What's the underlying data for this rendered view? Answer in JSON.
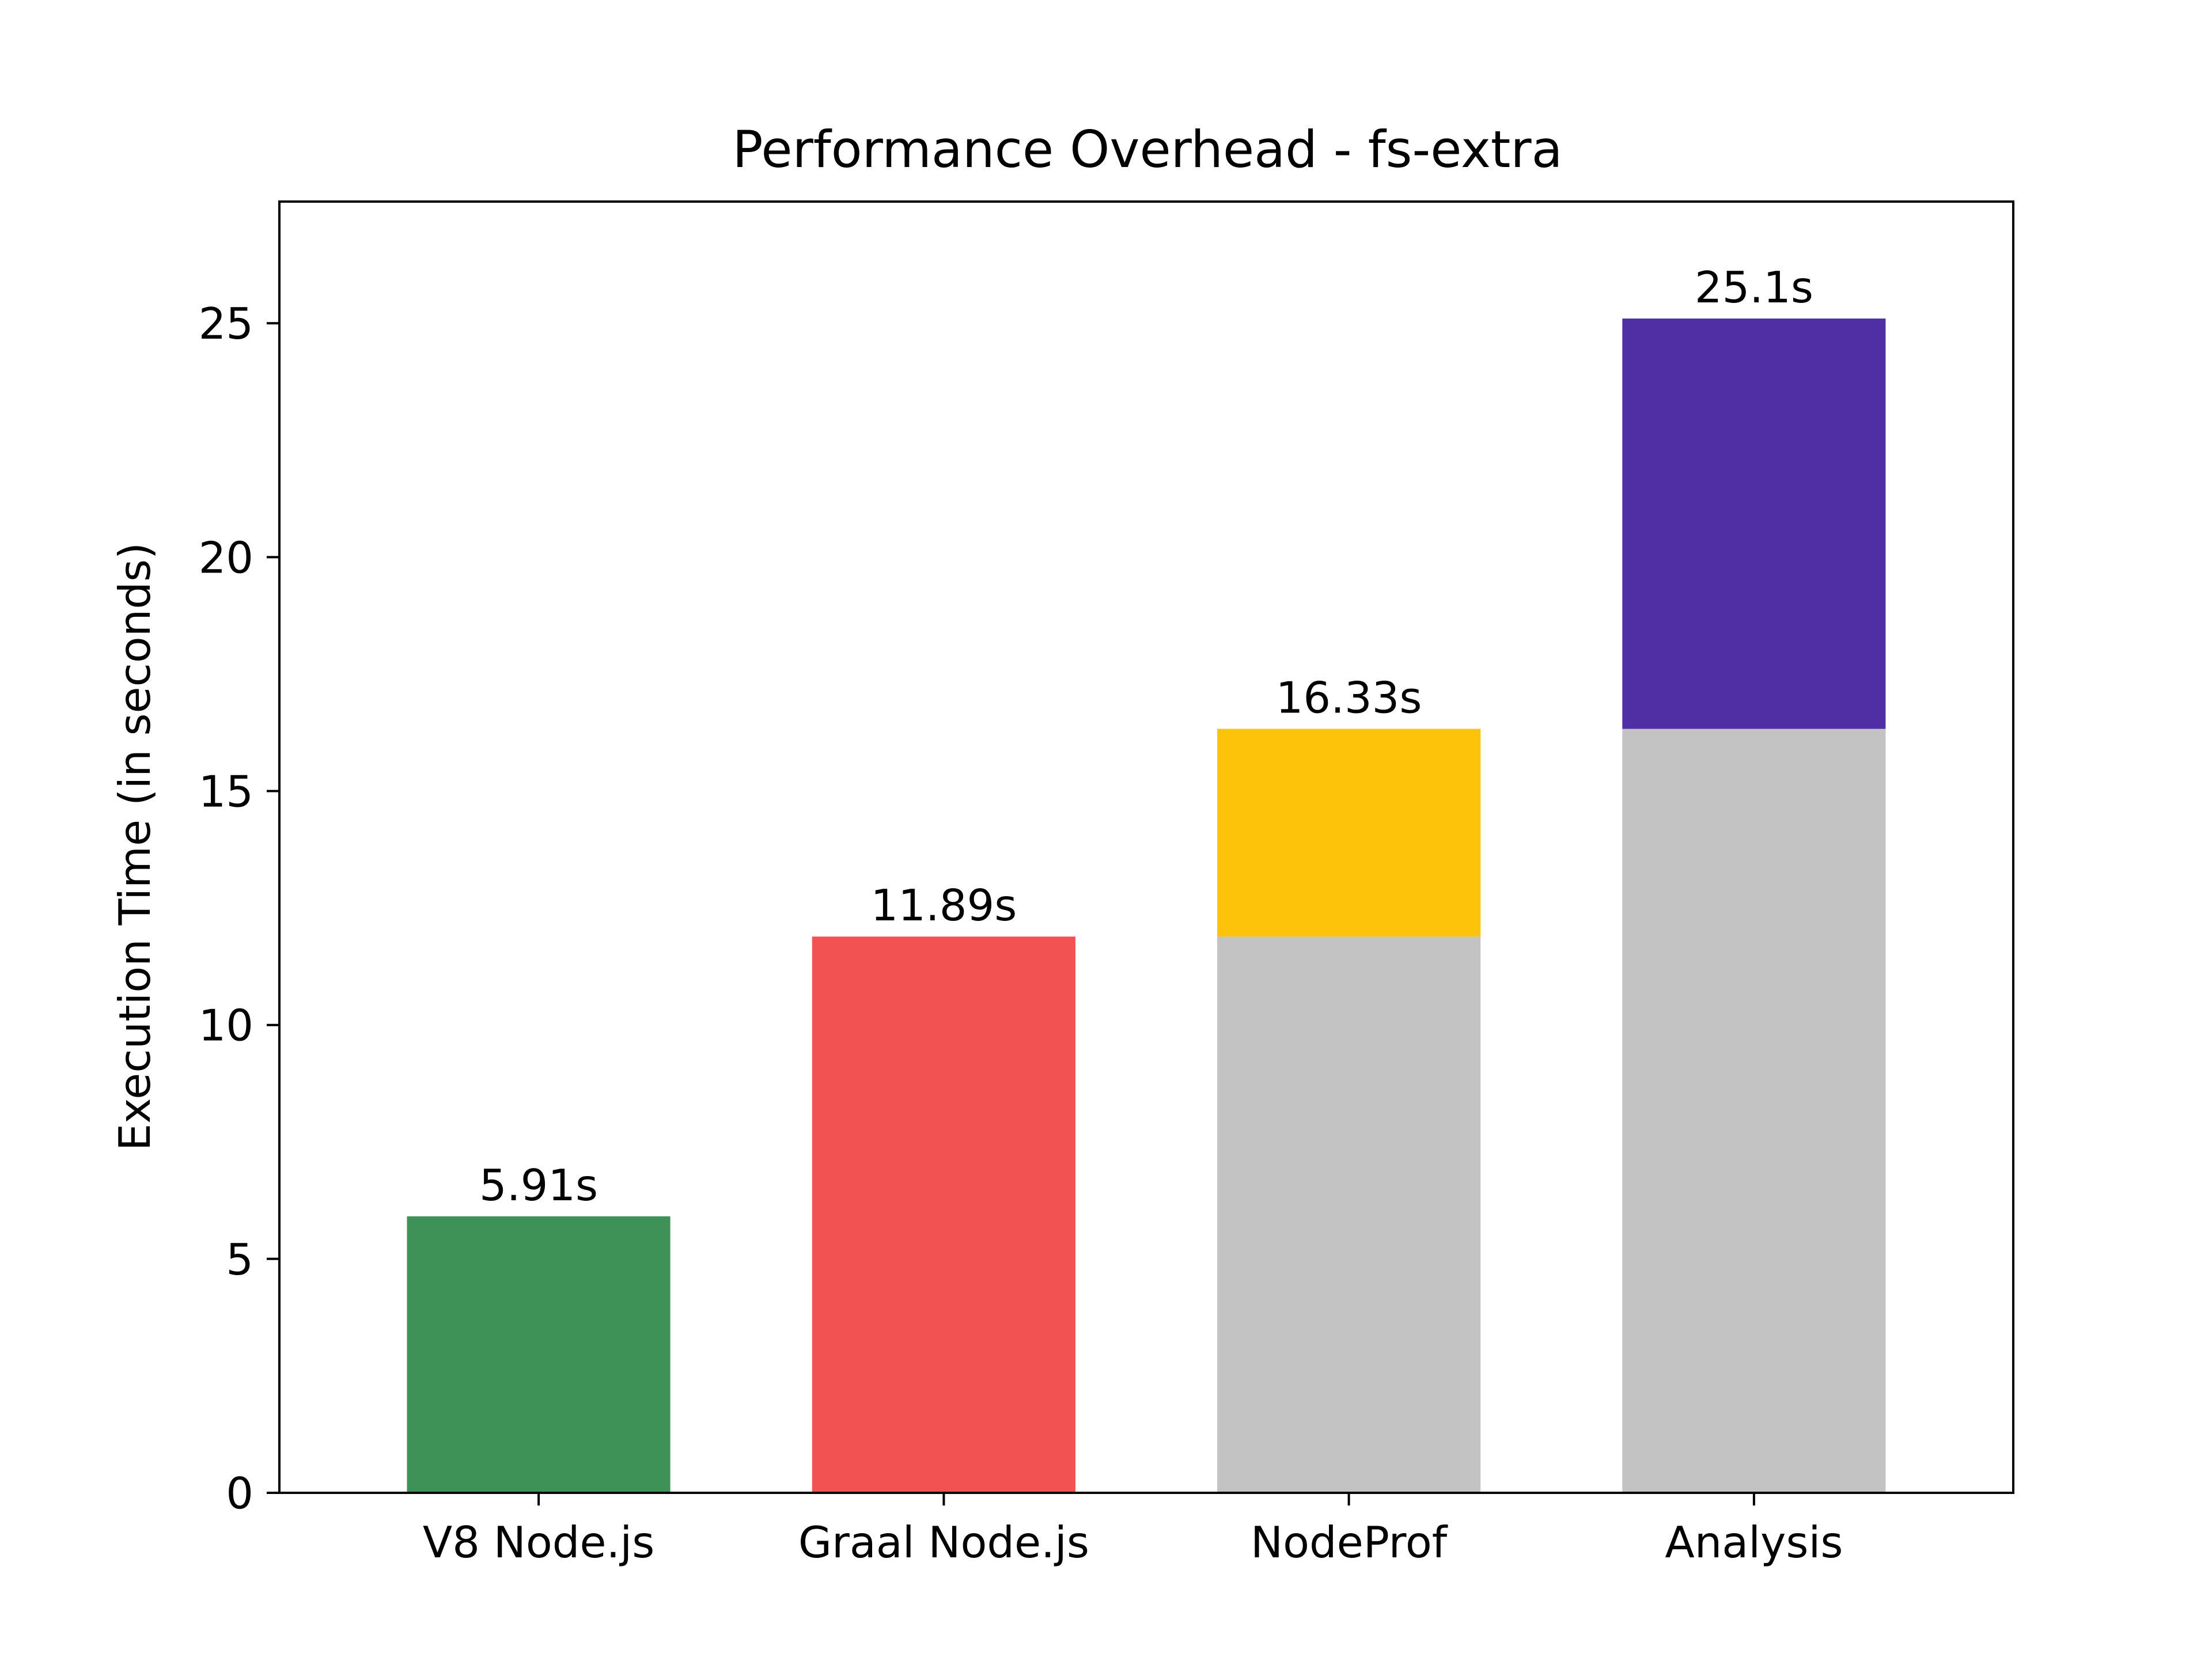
{
  "chart_data": {
    "type": "bar",
    "stacked": true,
    "title": "Performance Overhead - fs-extra",
    "xlabel": "",
    "ylabel": "Execution Time (in seconds)",
    "ylim": [
      0,
      27.6
    ],
    "yticks": [
      0,
      5,
      10,
      15,
      20,
      25
    ],
    "grid": false,
    "categories": [
      "V8 Node.js",
      "Graal Node.js",
      "NodeProf",
      "Analysis"
    ],
    "bars": [
      {
        "category": "V8 Node.js",
        "total_label": "5.91s",
        "segments": [
          {
            "from": 0,
            "to": 5.91,
            "color": "#3e9157"
          }
        ]
      },
      {
        "category": "Graal Node.js",
        "total_label": "11.89s",
        "segments": [
          {
            "from": 0,
            "to": 11.89,
            "color": "#f25252"
          }
        ]
      },
      {
        "category": "NodeProf",
        "total_label": "16.33s",
        "segments": [
          {
            "from": 0,
            "to": 11.89,
            "color": "#c3c3c3"
          },
          {
            "from": 11.89,
            "to": 16.33,
            "color": "#fdc20a"
          }
        ]
      },
      {
        "category": "Analysis",
        "total_label": "25.1s",
        "segments": [
          {
            "from": 0,
            "to": 16.33,
            "color": "#c3c3c3"
          },
          {
            "from": 16.33,
            "to": 25.1,
            "color": "#502ea4"
          }
        ]
      }
    ]
  }
}
